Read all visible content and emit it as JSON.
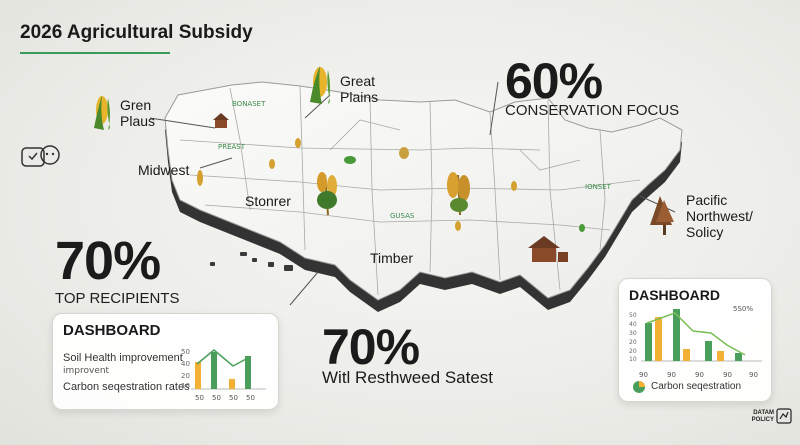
{
  "header": {
    "title": "2026 Agricultural Subsidy"
  },
  "regions": {
    "gren_plaus": [
      "Gren",
      "Plaus"
    ],
    "great_plains": [
      "Great",
      "Plains"
    ],
    "midwest": "Midwest",
    "stonrer": "Stonrer",
    "timber": "Timber",
    "pacific": [
      "Pacific",
      "Northwest/",
      "Solicy"
    ]
  },
  "map_labels": {
    "north_tag": "BONASET",
    "plains_tag": "PREAST",
    "center_tag": "GUSAS",
    "east_tag": "IONSET"
  },
  "stats": {
    "conservation": {
      "value": "60%",
      "label": "CONSERVATION FOCUS"
    },
    "top_recipients": {
      "value": "70%",
      "label": "TOP RECIPIENTS"
    },
    "resthweed": {
      "value": "70%",
      "label": "Witl Resthweed Satest"
    }
  },
  "dashboard_left": {
    "title": "DASHBOARD",
    "row1": "Soil Health improvement",
    "row1_sub": "improvent",
    "row2": "Carbon seqestration rates",
    "axis": [
      "50",
      "50",
      "50",
      "50"
    ],
    "yticks": [
      "50",
      "40",
      "20",
      "10"
    ]
  },
  "dashboard_right": {
    "title": "DASHBOARD",
    "corner": "5S0%",
    "yticks": [
      "50",
      "40",
      "30",
      "20",
      "20",
      "10"
    ],
    "axis": [
      "90",
      "90",
      "90",
      "90",
      "90"
    ],
    "legend": "Carbon seqestration"
  },
  "footer": {
    "logo_line1": "DATAM",
    "logo_line2": "POLICY"
  },
  "colors": {
    "accent_green": "#3a9a5a",
    "bar_orange": "#f2b134",
    "bar_green": "#4a9e5c"
  }
}
